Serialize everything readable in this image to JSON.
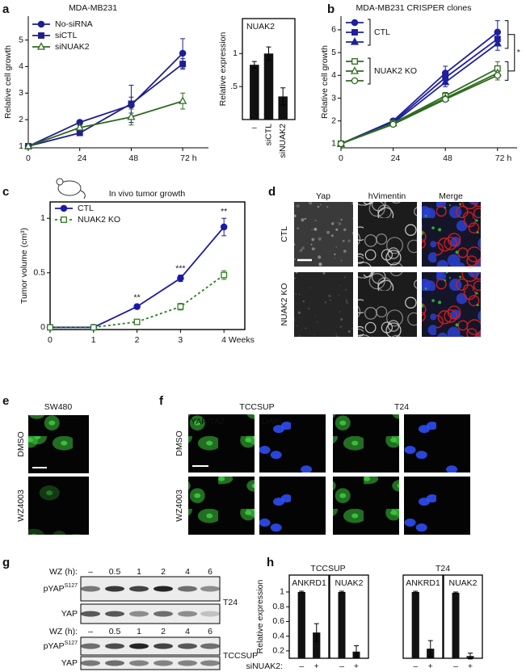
{
  "figure": {
    "panel_letters": [
      "a",
      "b",
      "c",
      "d",
      "e",
      "f",
      "g",
      "h"
    ]
  },
  "chart_data": [
    {
      "type": "line",
      "title": "MDA-MB231",
      "y_label": "Relative cell growth",
      "x": [
        0,
        24,
        48,
        72
      ],
      "xlim": [
        0,
        84
      ],
      "xticks": [
        0,
        24,
        48,
        {
          "value": 72,
          "label": "72 h"
        }
      ],
      "ylim": [
        0.94,
        5.9
      ],
      "yticks": [
        1,
        2,
        3,
        4,
        5
      ],
      "series": [
        {
          "name": "No-siRNA",
          "color": "#1f1f8f",
          "marker": "circle",
          "values": [
            1,
            1.9,
            2.55,
            4.5
          ],
          "errors": [
            0.03,
            0.08,
            0.3,
            0.55
          ]
        },
        {
          "name": "siCTL",
          "color": "#1f1f8f",
          "marker": "square",
          "values": [
            1,
            1.5,
            2.6,
            4.1
          ],
          "errors": [
            0.03,
            0.05,
            0.7,
            0.2
          ]
        },
        {
          "name": "siNUAK2",
          "color": "#2e6b1e",
          "marker": "triangle",
          "hollow": true,
          "values": [
            1,
            1.7,
            2.1,
            2.7
          ],
          "errors": [
            0.03,
            0.08,
            0.3,
            0.3
          ]
        }
      ]
    },
    {
      "type": "bar",
      "title": "NUAK2",
      "y_label": "Relative expression",
      "categories": [
        "–",
        "siCTL",
        "siNUAK2"
      ],
      "values": [
        0.83,
        1.0,
        0.35
      ],
      "errors": [
        0.05,
        0.1,
        0.13
      ],
      "color": "#111111",
      "ylim": [
        0,
        1.53
      ],
      "yticks": [
        {
          "value": 0.5,
          "label": ".5"
        },
        1
      ]
    },
    {
      "type": "line",
      "title": "MDA-MB231 CRISPER clones",
      "y_label": "Relative cell growth",
      "x": [
        0,
        24,
        48,
        72
      ],
      "xlim": [
        0,
        81
      ],
      "xticks": [
        0,
        24,
        48,
        {
          "value": 72,
          "label": "72 h"
        }
      ],
      "ylim": [
        0.82,
        6.6
      ],
      "yticks": [
        1,
        2,
        3,
        4,
        5,
        6
      ],
      "significance": "*",
      "series": [
        {
          "name": "CTL",
          "color": "#1f1f9f",
          "marker": "circle",
          "values": [
            1,
            2.0,
            4.1,
            5.9
          ],
          "errors": [
            0.03,
            0.1,
            0.3,
            0.5
          ]
        },
        {
          "name": "CTL",
          "color": "#1f1f9f",
          "marker": "square",
          "values": [
            1,
            1.95,
            3.9,
            5.6
          ],
          "errors": [
            0.03,
            0.08,
            0.2,
            0.3
          ]
        },
        {
          "name": "CTL",
          "color": "#1f1f9f",
          "marker": "triangle",
          "values": [
            1,
            1.9,
            3.7,
            5.4
          ],
          "errors": [
            0.03,
            0.08,
            0.2,
            0.3
          ]
        },
        {
          "name": "NUAK2 KO",
          "color": "#2e6b1e",
          "marker": "square",
          "hollow": true,
          "values": [
            1,
            1.9,
            3.1,
            4.3
          ],
          "errors": [
            0.03,
            0.08,
            0.15,
            0.3
          ]
        },
        {
          "name": "NUAK2 KO",
          "color": "#2e6b1e",
          "marker": "triangle",
          "hollow": true,
          "values": [
            1,
            1.9,
            3.0,
            4.1
          ],
          "errors": [
            0.03,
            0.08,
            0.15,
            0.2
          ]
        },
        {
          "name": "NUAK2 KO",
          "color": "#2e6b1e",
          "marker": "circle",
          "hollow": true,
          "values": [
            1,
            1.85,
            2.95,
            4.0
          ],
          "errors": [
            0.03,
            0.08,
            0.1,
            0.2
          ]
        }
      ]
    },
    {
      "type": "line",
      "title": "In vivo tumor growth",
      "y_label": "Tumor volume (cm³)",
      "x": [
        0,
        1,
        2,
        3,
        4
      ],
      "xlim": [
        0,
        4.48
      ],
      "xticks": [
        0,
        1,
        2,
        3,
        {
          "value": 4,
          "label": "4 Weeks"
        }
      ],
      "ylim": [
        -0.02,
        1.15
      ],
      "yticks": [
        0,
        0.5,
        1
      ],
      "frame": true,
      "series": [
        {
          "name": "CTL",
          "color": "#1a1aa8",
          "marker": "circle",
          "values": [
            0,
            0,
            0.19,
            0.45,
            0.92
          ],
          "errors": [
            null,
            null,
            0.02,
            0.03,
            0.08
          ]
        },
        {
          "name": "NUAK2 KO",
          "color": "#2e7d1e",
          "marker": "square",
          "hollow": true,
          "dashed": true,
          "values": [
            0,
            0,
            0.05,
            0.19,
            0.48
          ],
          "errors": [
            null,
            null,
            0.01,
            0.03,
            0.04
          ]
        }
      ],
      "annotations": [
        null,
        null,
        "**",
        "***",
        "**"
      ]
    },
    {
      "type": "bar",
      "title": "TCCSUP",
      "y_label": "Relative expression",
      "x_label": "siNUAK2:",
      "color": "#111111",
      "ylim": [
        0.1,
        1.23
      ],
      "yticks": [
        0.2,
        0.4,
        0.6,
        0.8,
        1
      ],
      "panels": [
        {
          "name": "ANKRD1",
          "categories": [
            "–",
            "+"
          ],
          "values": [
            1,
            0.45
          ],
          "errors": [
            0.01,
            0.12
          ]
        },
        {
          "name": "NUAK2",
          "categories": [
            "–",
            "+"
          ],
          "values": [
            1,
            0.19
          ],
          "errors": [
            0.01,
            0.08
          ]
        }
      ]
    },
    {
      "type": "bar",
      "title": "T24",
      "color": "#111111",
      "ylim": [
        0.1,
        1.23
      ],
      "panels": [
        {
          "name": "ANKRD1",
          "categories": [
            "–",
            "+"
          ],
          "values": [
            1,
            0.23
          ],
          "errors": [
            0.01,
            0.11
          ]
        },
        {
          "name": "NUAK2",
          "categories": [
            "–",
            "+"
          ],
          "values": [
            0.99,
            0.13
          ],
          "errors": [
            0.01,
            0.04
          ]
        }
      ]
    }
  ],
  "images": {
    "d": {
      "columns": [
        "Yap",
        "hVimentin",
        "Merge"
      ],
      "column_colors": [
        "#2fae2f",
        "#c81e1e",
        "#111111"
      ],
      "rows": [
        "CTL",
        "NUAK2 KO"
      ]
    },
    "e": {
      "title": "SW480",
      "rows": [
        "DMSO",
        "WZ4003"
      ]
    },
    "f": {
      "groups": [
        "TCCSUP",
        "T24"
      ],
      "channels": [
        "YAP/TAZ",
        "DAPI"
      ],
      "channel_colors": [
        "#3cc83c",
        "#3050ff"
      ],
      "rows": [
        "DMSO",
        "WZ4003"
      ]
    },
    "g": {
      "time_label": "WZ (h):",
      "times": [
        "–",
        "0.5",
        "1",
        "2",
        "4",
        "6"
      ],
      "blots": [
        {
          "cell_line": "T24",
          "bands": [
            {
              "name": "pYAP",
              "superscript": "S127"
            },
            {
              "name": "YAP"
            }
          ]
        },
        {
          "cell_line": "TCCSUP",
          "bands": [
            {
              "name": "pYAP",
              "superscript": "S127"
            },
            {
              "name": "YAP"
            }
          ]
        }
      ]
    }
  }
}
